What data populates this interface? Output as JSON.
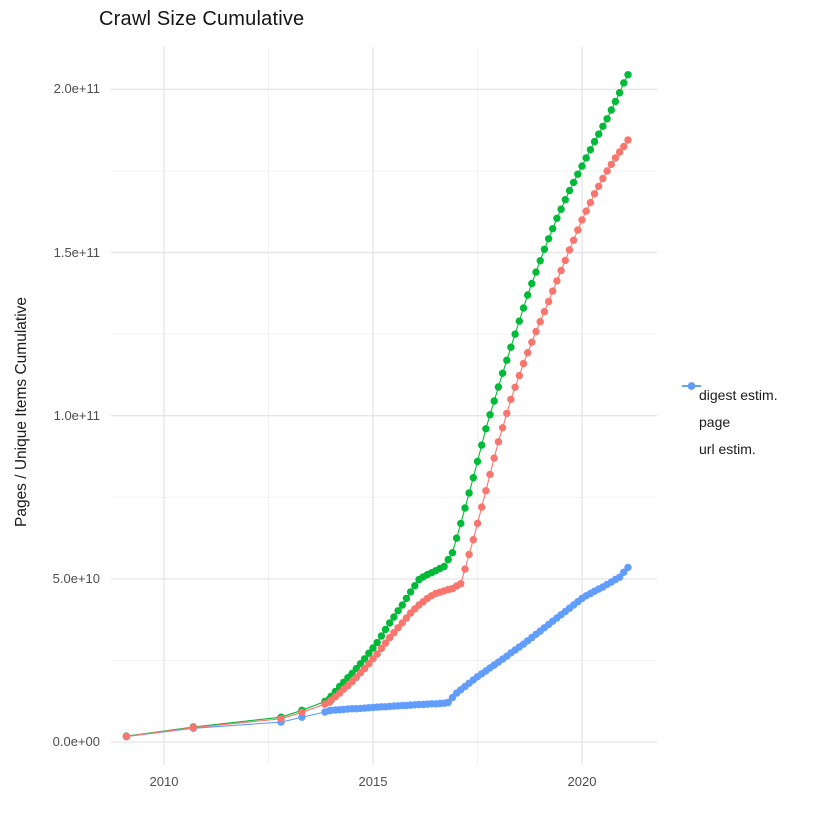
{
  "title": "Crawl Size Cumulative",
  "y_axis": {
    "label": "Pages / Unique Items Cumulative",
    "ticks": [
      {
        "value": 0,
        "label": "0.0e+00"
      },
      {
        "value": 50,
        "label": "5.0e+10"
      },
      {
        "value": 100,
        "label": "1.0e+11"
      },
      {
        "value": 150,
        "label": "1.5e+11"
      },
      {
        "value": 200,
        "label": "2.0e+11"
      }
    ],
    "minor_ticks": [
      25,
      75,
      125,
      175
    ]
  },
  "x_axis": {
    "ticks": [
      {
        "value": 2010,
        "label": "2010"
      },
      {
        "value": 2015,
        "label": "2015"
      },
      {
        "value": 2020,
        "label": "2020"
      }
    ],
    "minor_ticks": [
      2012.5,
      2017.5
    ]
  },
  "legend": [
    {
      "label": "digest estim.",
      "color": "#F8766D"
    },
    {
      "label": "page",
      "color": "#00BA38"
    },
    {
      "label": "url estim.",
      "color": "#619CFF"
    }
  ],
  "style": {
    "background": "#ffffff",
    "grid_major_color": "#e5e5e5",
    "grid_minor_color": "#f2f2f2",
    "tick_text_color": "#4d4d4d",
    "title_color": "#141414",
    "point_radius": 3.7,
    "line_width": 1.1
  },
  "chart_data": {
    "type": "line",
    "title": "Crawl Size Cumulative",
    "xlabel": "",
    "ylabel": "Pages / Unique Items Cumulative",
    "x_unit": "year (decimal, crawl date)",
    "value_unit": "pages, stored as billions (multiply by 1e9)",
    "xlim": [
      2008.7,
      2021.8
    ],
    "ylim": [
      0,
      208
    ],
    "grid": true,
    "legend_position": "right",
    "marker": "point-with-line",
    "series": [
      {
        "name": "digest estim.",
        "color": "#F8766D",
        "z": 3,
        "points": [
          [
            2009.1,
            1.7
          ],
          [
            2010.7,
            4.4
          ],
          [
            2012.8,
            7.1
          ],
          [
            2013.3,
            9.1
          ],
          [
            2013.85,
            11.6
          ],
          [
            2013.96,
            12.2
          ],
          [
            2014.0,
            12.8
          ],
          [
            2014.1,
            13.9
          ],
          [
            2014.2,
            15
          ],
          [
            2014.3,
            16.2
          ],
          [
            2014.4,
            17.3
          ],
          [
            2014.5,
            18.5
          ],
          [
            2014.6,
            19.8
          ],
          [
            2014.7,
            21.2
          ],
          [
            2014.8,
            22.5
          ],
          [
            2014.9,
            24
          ],
          [
            2015.0,
            25.5
          ],
          [
            2015.1,
            27
          ],
          [
            2015.2,
            28.7
          ],
          [
            2015.3,
            30.3
          ],
          [
            2015.4,
            32
          ],
          [
            2015.5,
            33.5
          ],
          [
            2015.6,
            35
          ],
          [
            2015.7,
            36.5
          ],
          [
            2015.8,
            38
          ],
          [
            2015.9,
            39.5
          ],
          [
            2016.0,
            40.8
          ],
          [
            2016.1,
            42
          ],
          [
            2016.2,
            43
          ],
          [
            2016.3,
            44
          ],
          [
            2016.4,
            44.8
          ],
          [
            2016.5,
            45.5
          ],
          [
            2016.6,
            45.9
          ],
          [
            2016.7,
            46.3
          ],
          [
            2016.8,
            46.7
          ],
          [
            2016.9,
            47
          ],
          [
            2017.0,
            47.8
          ],
          [
            2017.1,
            48.5
          ],
          [
            2017.2,
            53
          ],
          [
            2017.3,
            57.5
          ],
          [
            2017.4,
            62
          ],
          [
            2017.5,
            67
          ],
          [
            2017.6,
            72
          ],
          [
            2017.7,
            77
          ],
          [
            2017.8,
            82
          ],
          [
            2017.9,
            87
          ],
          [
            2018.0,
            92
          ],
          [
            2018.1,
            96.3
          ],
          [
            2018.2,
            100.7
          ],
          [
            2018.3,
            105
          ],
          [
            2018.4,
            108.7
          ],
          [
            2018.5,
            112.3
          ],
          [
            2018.6,
            116
          ],
          [
            2018.7,
            119.3
          ],
          [
            2018.8,
            122.5
          ],
          [
            2018.9,
            125.8
          ],
          [
            2019.0,
            128.8
          ],
          [
            2019.1,
            131.9
          ],
          [
            2019.2,
            135
          ],
          [
            2019.3,
            138.2
          ],
          [
            2019.4,
            141.3
          ],
          [
            2019.5,
            144.5
          ],
          [
            2019.6,
            147.6
          ],
          [
            2019.7,
            150.8
          ],
          [
            2019.8,
            153.8
          ],
          [
            2019.9,
            156.9
          ],
          [
            2020.0,
            160
          ],
          [
            2020.1,
            162.7
          ],
          [
            2020.2,
            165.3
          ],
          [
            2020.3,
            168
          ],
          [
            2020.4,
            170.3
          ],
          [
            2020.5,
            172.7
          ],
          [
            2020.6,
            175
          ],
          [
            2020.7,
            177
          ],
          [
            2020.8,
            179
          ],
          [
            2020.9,
            180.8
          ],
          [
            2021.0,
            182.5
          ],
          [
            2021.1,
            184.5
          ]
        ]
      },
      {
        "name": "page",
        "color": "#00BA38",
        "z": 1,
        "points": [
          [
            2009.1,
            1.8
          ],
          [
            2010.7,
            4.6
          ],
          [
            2012.8,
            7.6
          ],
          [
            2013.3,
            9.7
          ],
          [
            2013.85,
            12.4
          ],
          [
            2013.96,
            13.2
          ],
          [
            2014.0,
            14
          ],
          [
            2014.1,
            15.5
          ],
          [
            2014.2,
            17
          ],
          [
            2014.3,
            18.3
          ],
          [
            2014.4,
            19.7
          ],
          [
            2014.5,
            21
          ],
          [
            2014.6,
            22.5
          ],
          [
            2014.7,
            24
          ],
          [
            2014.8,
            25.5
          ],
          [
            2014.9,
            27.2
          ],
          [
            2015.0,
            28.8
          ],
          [
            2015.1,
            30.5
          ],
          [
            2015.2,
            32.5
          ],
          [
            2015.3,
            34.5
          ],
          [
            2015.4,
            36.5
          ],
          [
            2015.5,
            38.3
          ],
          [
            2015.6,
            40.2
          ],
          [
            2015.7,
            42
          ],
          [
            2015.8,
            44
          ],
          [
            2015.9,
            46
          ],
          [
            2016.0,
            47.9
          ],
          [
            2016.1,
            49.8
          ],
          [
            2016.2,
            50.6
          ],
          [
            2016.3,
            51.3
          ],
          [
            2016.4,
            51.9
          ],
          [
            2016.5,
            52.5
          ],
          [
            2016.6,
            53.2
          ],
          [
            2016.7,
            53.8
          ],
          [
            2016.8,
            55.9
          ],
          [
            2016.9,
            58
          ],
          [
            2017.0,
            62.5
          ],
          [
            2017.1,
            67
          ],
          [
            2017.2,
            71.7
          ],
          [
            2017.3,
            76.3
          ],
          [
            2017.4,
            81
          ],
          [
            2017.5,
            86
          ],
          [
            2017.6,
            91
          ],
          [
            2017.7,
            96
          ],
          [
            2017.8,
            100.3
          ],
          [
            2017.9,
            104.5
          ],
          [
            2018.0,
            108.8
          ],
          [
            2018.1,
            113
          ],
          [
            2018.2,
            117
          ],
          [
            2018.3,
            121
          ],
          [
            2018.4,
            125
          ],
          [
            2018.5,
            129
          ],
          [
            2018.6,
            133
          ],
          [
            2018.7,
            137
          ],
          [
            2018.8,
            140.5
          ],
          [
            2018.9,
            144
          ],
          [
            2019.0,
            147.5
          ],
          [
            2019.1,
            151
          ],
          [
            2019.2,
            154.2
          ],
          [
            2019.3,
            157.3
          ],
          [
            2019.4,
            160.5
          ],
          [
            2019.5,
            163.3
          ],
          [
            2019.6,
            166.2
          ],
          [
            2019.7,
            169
          ],
          [
            2019.8,
            171.5
          ],
          [
            2019.9,
            174
          ],
          [
            2020.0,
            176.5
          ],
          [
            2020.1,
            179
          ],
          [
            2020.2,
            181.5
          ],
          [
            2020.3,
            184
          ],
          [
            2020.4,
            186.3
          ],
          [
            2020.5,
            188.7
          ],
          [
            2020.6,
            191
          ],
          [
            2020.7,
            193.7
          ],
          [
            2020.8,
            196.3
          ],
          [
            2020.9,
            199
          ],
          [
            2021.0,
            202
          ],
          [
            2021.1,
            204.5
          ]
        ]
      },
      {
        "name": "url estim.",
        "color": "#619CFF",
        "z": 2,
        "points": [
          [
            2009.1,
            1.7
          ],
          [
            2010.7,
            4.2
          ],
          [
            2012.8,
            6.1
          ],
          [
            2013.3,
            7.6
          ],
          [
            2013.85,
            9.2
          ],
          [
            2013.96,
            9.6
          ],
          [
            2014.0,
            9.7
          ],
          [
            2014.1,
            9.8
          ],
          [
            2014.2,
            9.9
          ],
          [
            2014.3,
            10
          ],
          [
            2014.4,
            10.1
          ],
          [
            2014.5,
            10.2
          ],
          [
            2014.6,
            10.2
          ],
          [
            2014.7,
            10.3
          ],
          [
            2014.8,
            10.4
          ],
          [
            2014.9,
            10.5
          ],
          [
            2015.0,
            10.6
          ],
          [
            2015.1,
            10.7
          ],
          [
            2015.2,
            10.8
          ],
          [
            2015.3,
            10.8
          ],
          [
            2015.4,
            10.9
          ],
          [
            2015.5,
            11
          ],
          [
            2015.6,
            11.1
          ],
          [
            2015.7,
            11.2
          ],
          [
            2015.8,
            11.2
          ],
          [
            2015.9,
            11.3
          ],
          [
            2016.0,
            11.4
          ],
          [
            2016.1,
            11.5
          ],
          [
            2016.2,
            11.5
          ],
          [
            2016.3,
            11.6
          ],
          [
            2016.4,
            11.7
          ],
          [
            2016.5,
            11.7
          ],
          [
            2016.6,
            11.8
          ],
          [
            2016.7,
            11.9
          ],
          [
            2016.8,
            12.1
          ],
          [
            2016.9,
            13.6
          ],
          [
            2017.0,
            15
          ],
          [
            2017.1,
            16
          ],
          [
            2017.2,
            17
          ],
          [
            2017.3,
            18
          ],
          [
            2017.4,
            19
          ],
          [
            2017.5,
            20
          ],
          [
            2017.6,
            20.9
          ],
          [
            2017.7,
            21.8
          ],
          [
            2017.8,
            22.7
          ],
          [
            2017.9,
            23.6
          ],
          [
            2018.0,
            24.5
          ],
          [
            2018.1,
            25.4
          ],
          [
            2018.2,
            26.3
          ],
          [
            2018.3,
            27.3
          ],
          [
            2018.4,
            28.2
          ],
          [
            2018.5,
            29.1
          ],
          [
            2018.6,
            30
          ],
          [
            2018.7,
            31
          ],
          [
            2018.8,
            32
          ],
          [
            2018.9,
            33
          ],
          [
            2019.0,
            34
          ],
          [
            2019.1,
            35
          ],
          [
            2019.2,
            36
          ],
          [
            2019.3,
            37
          ],
          [
            2019.4,
            38
          ],
          [
            2019.5,
            39
          ],
          [
            2019.6,
            40
          ],
          [
            2019.7,
            41
          ],
          [
            2019.8,
            42
          ],
          [
            2019.9,
            43
          ],
          [
            2020.0,
            44
          ],
          [
            2020.1,
            44.8
          ],
          [
            2020.2,
            45.5
          ],
          [
            2020.3,
            46.2
          ],
          [
            2020.4,
            46.9
          ],
          [
            2020.5,
            47.5
          ],
          [
            2020.6,
            48.3
          ],
          [
            2020.7,
            49
          ],
          [
            2020.8,
            49.8
          ],
          [
            2020.9,
            50.5
          ],
          [
            2021.0,
            52
          ],
          [
            2021.1,
            53.5
          ]
        ]
      }
    ]
  }
}
